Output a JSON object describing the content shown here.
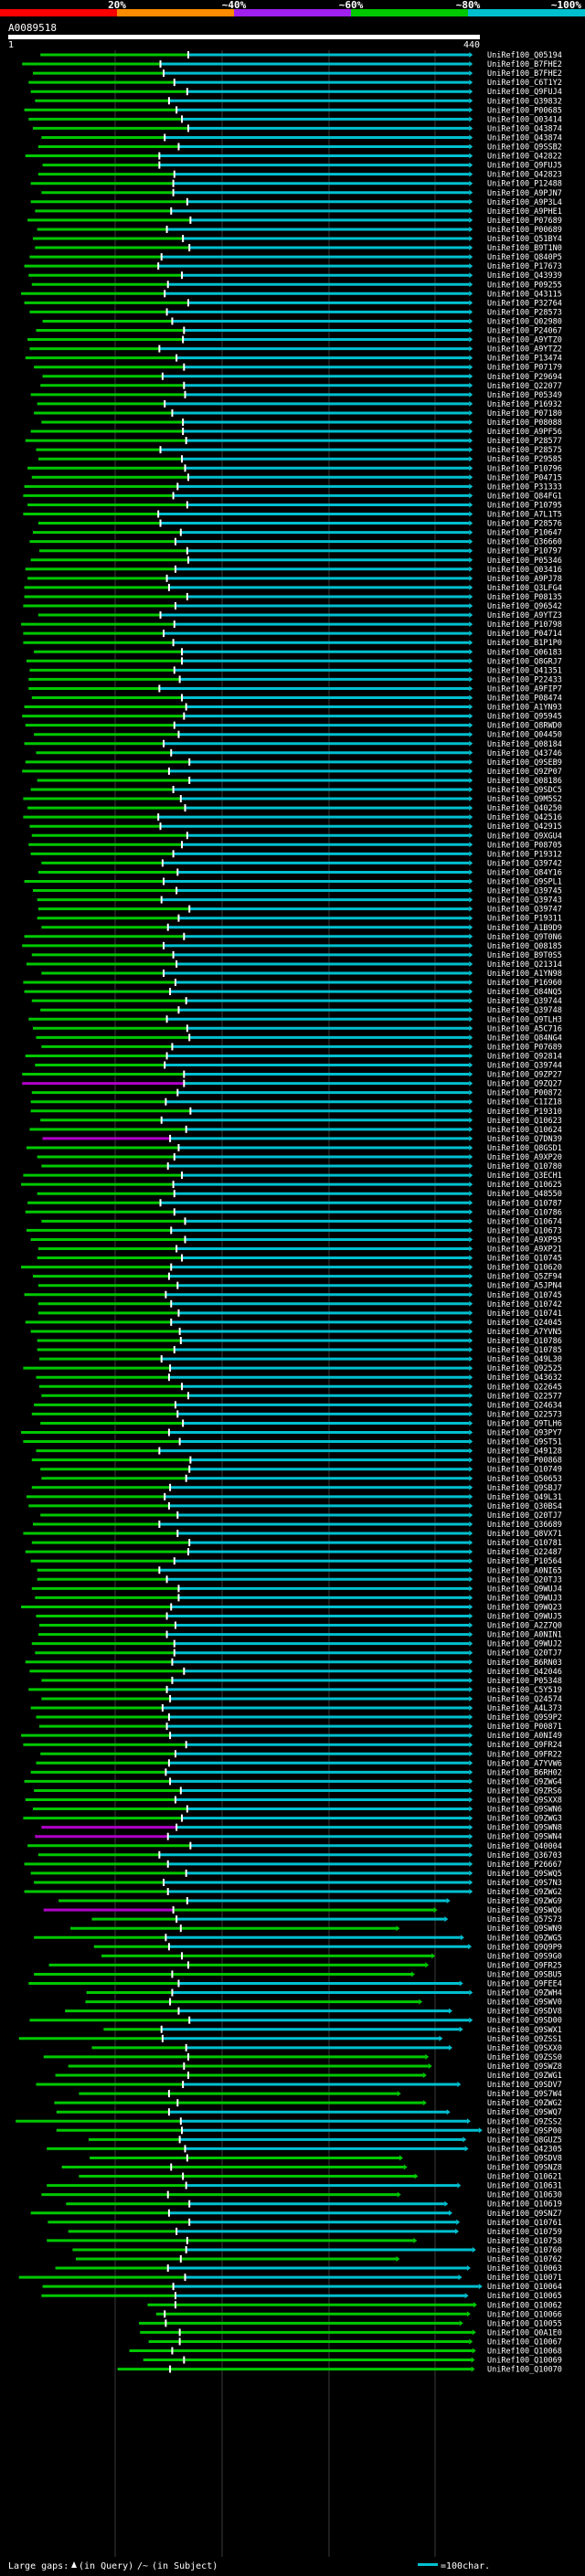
{
  "chart_data": {
    "type": "alignment-overview",
    "query_id": "A0089518",
    "query_range_start": "1",
    "query_range_end": "440",
    "color_scale": [
      {
        "label": "20%",
        "color": "#ff0000"
      },
      {
        "label": "~40%",
        "color": "#ff8c00"
      },
      {
        "label": "~60%",
        "color": "#a020f0"
      },
      {
        "label": "~80%",
        "color": "#00c800"
      },
      {
        "label": "~100%",
        "color": "#00c0d0"
      }
    ],
    "footer": {
      "large_gaps": "Large gaps:",
      "in_query": "(in Query)",
      "in_subject": "(in Subject)",
      "scale_text": "=100char."
    },
    "hits": [
      "UniRef100_Q05194",
      "UniRef100_B7FHE2",
      "UniRef100_B7FHE2",
      "UniRef100_C6T1Y2",
      "UniRef100_Q9FUJ4",
      "UniRef100_Q39832",
      "UniRef100_P00685",
      "UniRef100_Q03414",
      "UniRef100_Q43874",
      "UniRef100_Q43874",
      "UniRef100_Q9SSB2",
      "UniRef100_Q42822",
      "UniRef100_Q9FUJ5",
      "UniRef100_Q42823",
      "UniRef100_P12488",
      "UniRef100_A9PJN7",
      "UniRef100_A9P3L4",
      "UniRef100_A9PHE1",
      "UniRef100_P07689",
      "UniRef100_P00689",
      "UniRef100_Q51BY4",
      "UniRef100_B9T1N0",
      "UniRef100_Q840P5",
      "UniRef100_P17673",
      "UniRef100_Q43939",
      "UniRef100_P09255",
      "UniRef100_Q43115",
      "UniRef100_P32764",
      "UniRef100_P28573",
      "UniRef100_Q02980",
      "UniRef100_P24067",
      "UniRef100_A9YTZ0",
      "UniRef100_A9YTZ2",
      "UniRef100_P13474",
      "UniRef100_P07179",
      "UniRef100_P29694",
      "UniRef100_Q22077",
      "UniRef100_P05349",
      "UniRef100_P16932",
      "UniRef100_P07180",
      "UniRef100_P08088",
      "UniRef100_A9PF56",
      "UniRef100_P28577",
      "UniRef100_P28575",
      "UniRef100_P29585",
      "UniRef100_P10796",
      "UniRef100_P04715",
      "UniRef100_P31333",
      "UniRef100_Q84FG1",
      "UniRef100_P10795",
      "UniRef100_A7L1T5",
      "UniRef100_P28576",
      "UniRef100_P10647",
      "UniRef100_Q36660",
      "UniRef100_P10797",
      "UniRef100_P05346",
      "UniRef100_Q03416",
      "UniRef100_A9PJ78",
      "UniRef100_Q3LFG4",
      "UniRef100_P08135",
      "UniRef100_Q96542",
      "UniRef100_A9YTZ3",
      "UniRef100_P10798",
      "UniRef100_P04714",
      "UniRef100_B1P1P0",
      "UniRef100_Q06183",
      "UniRef100_Q8GRJ7",
      "UniRef100_Q41351",
      "UniRef100_P22433",
      "UniRef100_A9FIP7",
      "UniRef100_P08474",
      "UniRef100_A1YN93",
      "UniRef100_Q95945",
      "UniRef100_Q8RWD0",
      "UniRef100_Q04450",
      "UniRef100_Q08184",
      "UniRef100_Q43746",
      "UniRef100_Q9SEB9",
      "UniRef100_Q9ZP07",
      "UniRef100_Q08186",
      "UniRef100_Q9SDC5",
      "UniRef100_Q9M5S2",
      "UniRef100_Q40250",
      "UniRef100_Q42516",
      "UniRef100_Q42915",
      "UniRef100_Q9XGU4",
      "UniRef100_P08705",
      "UniRef100_P19312",
      "UniRef100_Q39742",
      "UniRef100_Q84Y16",
      "UniRef100_Q9SPL1",
      "UniRef100_Q39745",
      "UniRef100_Q39743",
      "UniRef100_Q39747",
      "UniRef100_P19311",
      "UniRef100_A1B9D9",
      "UniRef100_Q9T0N6",
      "UniRef100_Q08185",
      "UniRef100_B9T0S5",
      "UniRef100_Q21314",
      "UniRef100_A1YN98",
      "UniRef100_P16960",
      "UniRef100_Q84NQ5",
      "UniRef100_Q39744",
      "UniRef100_Q39748",
      "UniRef100_Q9TLH3",
      "UniRef100_A5C716",
      "UniRef100_Q84NG4",
      "UniRef100_P07689",
      "UniRef100_Q92814",
      "UniRef100_Q39744",
      "UniRef100_Q9ZP27",
      "UniRef100_Q9ZQ27",
      "UniRef100_P00872",
      "UniRef100_C1IZ18",
      "UniRef100_P19310",
      "UniRef100_Q10623",
      "UniRef100_Q10624",
      "UniRef100_Q7DN39",
      "UniRef100_Q8GSD1",
      "UniRef100_A9XP20",
      "UniRef100_Q10780",
      "UniRef100_Q3ECH1",
      "UniRef100_Q10625",
      "UniRef100_Q48550",
      "UniRef100_Q10787",
      "UniRef100_Q10786",
      "UniRef100_Q10674",
      "UniRef100_Q10673",
      "UniRef100_A9XP95",
      "UniRef100_A9XP21",
      "UniRef100_Q10745",
      "UniRef100_Q10620",
      "UniRef100_Q5ZF94",
      "UniRef100_A5JPN4",
      "UniRef100_Q10745",
      "UniRef100_Q10742",
      "UniRef100_Q10741",
      "UniRef100_Q24045",
      "UniRef100_A7YVN5",
      "UniRef100_Q10786",
      "UniRef100_Q10785",
      "UniRef100_Q49L30",
      "UniRef100_Q92525",
      "UniRef100_Q43632",
      "UniRef100_Q22645",
      "UniRef100_Q22577",
      "UniRef100_Q24634",
      "UniRef100_Q22573",
      "UniRef100_Q9TLH6",
      "UniRef100_Q93PY7",
      "UniRef100_Q9ST51",
      "UniRef100_Q49128",
      "UniRef100_P00868",
      "UniRef100_Q10749",
      "UniRef100_Q50653",
      "UniRef100_Q9SBJ7",
      "UniRef100_Q49L31",
      "UniRef100_Q30BS4",
      "UniRef100_Q20TJ7",
      "UniRef100_Q36689",
      "UniRef100_Q8VX71",
      "UniRef100_Q10781",
      "UniRef100_Q22487",
      "UniRef100_P10564",
      "UniRef100_A0NI65",
      "UniRef100_Q20TJ3",
      "UniRef100_Q9WUJ4",
      "UniRef100_Q9WUJ3",
      "UniRef100_Q9WQ23",
      "UniRef100_Q9WUJ5",
      "UniRef100_A2Z7Q0",
      "UniRef100_A0NIN1",
      "UniRef100_Q9WUJ2",
      "UniRef100_Q20TJ7",
      "UniRef100_B6RN03",
      "UniRef100_Q42046",
      "UniRef100_P05348",
      "UniRef100_C5Y519",
      "UniRef100_Q24574",
      "UniRef100_A4L373",
      "UniRef100_Q9S9P2",
      "UniRef100_P00871",
      "UniRef100_A0NI49",
      "UniRef100_Q9FR24",
      "UniRef100_Q9FR22",
      "UniRef100_A7YVW6",
      "UniRef100_B6RH02",
      "UniRef100_Q9ZWG4",
      "UniRef100_Q9ZRS6",
      "UniRef100_Q9SXX8",
      "UniRef100_Q9SWN6",
      "UniRef100_Q9ZWG3",
      "UniRef100_Q9SWN8",
      "UniRef100_Q9SWN4",
      "UniRef100_Q40004",
      "UniRef100_Q36703",
      "UniRef100_P26667",
      "UniRef100_Q9SWQ5",
      "UniRef100_Q9S7N3",
      "UniRef100_Q9ZWG2",
      "UniRef100_Q9ZWG9",
      "UniRef100_Q9SWQ6",
      "UniRef100_Q57S73",
      "UniRef100_Q9SWN9",
      "UniRef100_Q9ZWG5",
      "UniRef100_Q9Q9P9",
      "UniRef100_Q9S9G0",
      "UniRef100_Q9FR25",
      "UniRef100_Q9SBU5",
      "UniRef100_Q9FEE4",
      "UniRef100_Q9ZWH4",
      "UniRef100_Q9SWV0",
      "UniRef100_Q9SDV8",
      "UniRef100_Q9SD00",
      "UniRef100_Q9SWX1",
      "UniRef100_Q9ZSS1",
      "UniRef100_Q9SXX0",
      "UniRef100_Q9ZSS0",
      "UniRef100_Q9SWZ8",
      "UniRef100_Q9ZWG1",
      "UniRef100_Q9SDV7",
      "UniRef100_Q9S7W4",
      "UniRef100_Q9ZWG2",
      "UniRef100_Q9SWQ7",
      "UniRef100_Q9ZSS2",
      "UniRef100_Q9SP00",
      "UniRef100_Q8GUZ5",
      "UniRef100_Q42305",
      "UniRef100_Q9SDV8",
      "UniRef100_Q9SNZ8",
      "UniRef100_Q10621",
      "UniRef100_Q10631",
      "UniRef100_Q10630",
      "UniRef100_Q10619",
      "UniRef100_Q9SNZ7",
      "UniRef100_Q10761",
      "UniRef100_Q10759",
      "UniRef100_Q10758",
      "UniRef100_Q10760",
      "UniRef100_Q10762",
      "UniRef100_Q10063",
      "UniRef100_Q10071",
      "UniRef100_Q10064",
      "UniRef100_Q10065",
      "UniRef100_Q10062",
      "UniRef100_Q10066",
      "UniRef100_Q10055",
      "UniRef100_Q0A1E0",
      "UniRef100_Q10067",
      "UniRef100_Q10068",
      "UniRef100_Q10069",
      "UniRef100_Q10070"
    ]
  }
}
